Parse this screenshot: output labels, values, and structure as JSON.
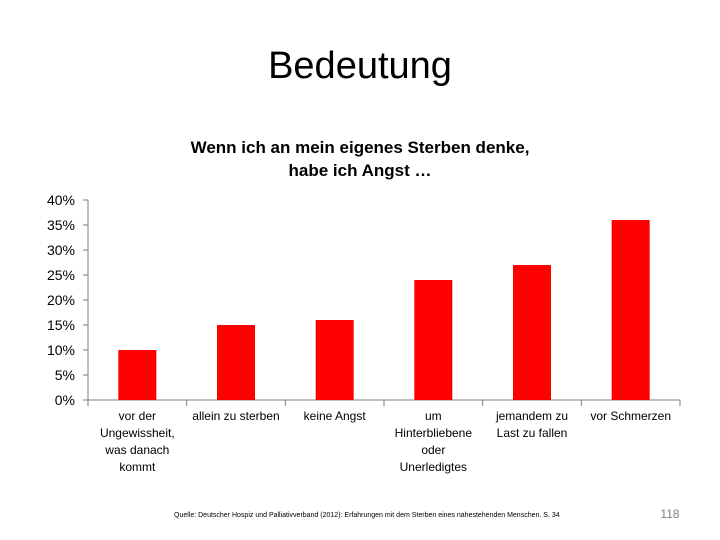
{
  "slide": {
    "title": "Bedeutung",
    "source": "Quelle: Deutscher Hospiz und Palliativverband (2012): Erfahrungen mit dem Sterben eines nahestehenden Menschen. S. 34",
    "page_number": "118"
  },
  "colors": {
    "bar": "#ff0000",
    "axis": "#7f7f7f"
  },
  "chart_data": {
    "type": "bar",
    "title": [
      "Wenn ich an mein eigenes Sterben denke,",
      "habe ich Angst …"
    ],
    "xlabel": "",
    "ylabel": "",
    "ylim": [
      0,
      0.4
    ],
    "yticks": [
      {
        "value": 0.4,
        "label": "40%"
      },
      {
        "value": 0.35,
        "label": "35%"
      },
      {
        "value": 0.3,
        "label": "30%"
      },
      {
        "value": 0.25,
        "label": "25%"
      },
      {
        "value": 0.2,
        "label": "20%"
      },
      {
        "value": 0.15,
        "label": "15%"
      },
      {
        "value": 0.1,
        "label": "10%"
      },
      {
        "value": 0.05,
        "label": "5%"
      },
      {
        "value": 0.0,
        "label": "0%"
      }
    ],
    "categories": [
      [
        "vor der",
        "Ungewissheit,",
        "was danach",
        "kommt"
      ],
      [
        "allein zu sterben"
      ],
      [
        "keine Angst"
      ],
      [
        "um",
        "Hinterbliebene",
        "oder",
        "Unerledigtes"
      ],
      [
        "jemandem zu",
        "Last zu fallen"
      ],
      [
        "vor Schmerzen"
      ]
    ],
    "values": [
      0.1,
      0.15,
      0.16,
      0.24,
      0.27,
      0.36
    ],
    "grid": false,
    "legend": "none"
  }
}
